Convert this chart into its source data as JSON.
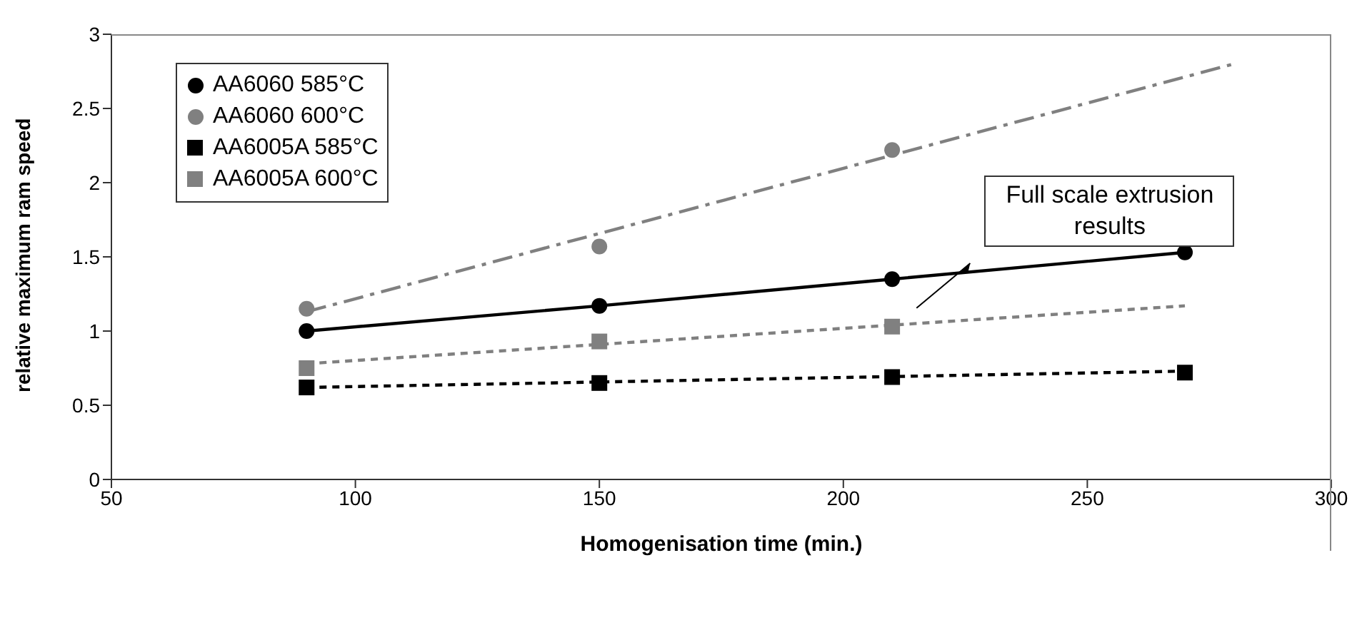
{
  "chart_data": {
    "type": "scatter",
    "xlabel": "Homogenisation time (min.)",
    "ylabel": "relative maximum ram speed",
    "xlim": [
      50,
      300
    ],
    "xticks": [
      50,
      100,
      150,
      200,
      250,
      300
    ],
    "ylim": [
      0,
      3
    ],
    "yticks": [
      0,
      0.5,
      1,
      1.5,
      2,
      2.5,
      3
    ],
    "grid": false,
    "legend": "top left",
    "annotations": [
      "Full scale extrusion results"
    ],
    "series": [
      {
        "name": "AA6060 585°C",
        "type": "line",
        "color": "#000000",
        "marker": "circle",
        "line_style": "solid",
        "x": [
          90,
          150,
          210,
          270
        ],
        "values": [
          1.0,
          1.17,
          1.35,
          1.53
        ]
      },
      {
        "name": "AA6060 600°C",
        "color": "#808080",
        "marker": "circle",
        "x": [
          90,
          150,
          210
        ],
        "values": [
          1.15,
          1.57,
          2.22
        ]
      },
      {
        "name": "AA6005A 585°C",
        "color": "#000000",
        "marker": "square",
        "x": [
          90,
          150,
          210,
          270
        ],
        "values": [
          0.62,
          0.65,
          0.69,
          0.72
        ]
      },
      {
        "name": "AA6005A 600°C",
        "color": "#808080",
        "marker": "square",
        "x": [
          90,
          150,
          210
        ],
        "values": [
          0.75,
          0.93,
          1.03
        ]
      },
      {
        "type": "line",
        "color": "#808080",
        "marker": "none",
        "line_style": "dashed",
        "x": [
          90,
          280
        ],
        "values": [
          1.13,
          2.8
        ]
      },
      {
        "type": "line",
        "color": "#000000",
        "marker": "none",
        "line_style": "dotted",
        "x": [
          90,
          270
        ],
        "values": [
          0.62,
          0.73
        ]
      },
      {
        "type": "line",
        "color": "#808080",
        "marker": "none",
        "line_style": "dotted",
        "x": [
          90,
          270
        ],
        "values": [
          0.78,
          1.17
        ]
      }
    ]
  }
}
